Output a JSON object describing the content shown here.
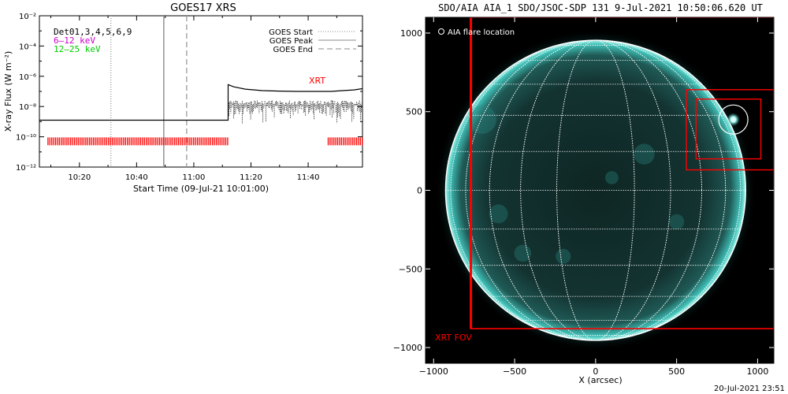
{
  "colors": {
    "flux_line": "#000000",
    "flag_marks": "#ff0000",
    "label_purple": "#cc00cc",
    "label_green": "#00cc00",
    "xrt_red": "#ff0000",
    "sun_teal": "#2bb5ad",
    "grid_white": "#ffffff",
    "ref_line_gray": "#999999"
  },
  "footer": {
    "timestamp": "20-Jul-2021 23:51"
  },
  "chart_data": [
    {
      "type": "line",
      "title": "GOES17 XRS",
      "xlabel": "Start Time (09-Jul-21 10:01:00)",
      "ylabel": "X-ray Flux (W m⁻²)",
      "x_unit": "minutes after 10:00",
      "xlim": [
        6,
        119
      ],
      "ylim_log10": [
        -12,
        -2
      ],
      "y_scale": "log",
      "xticks": [
        20,
        40,
        60,
        80,
        100
      ],
      "xtick_labels": [
        "10:20",
        "10:40",
        "11:00",
        "11:20",
        "11:40"
      ],
      "yticks": [
        {
          "exp": -2,
          "label": "10⁻²"
        },
        {
          "exp": -4,
          "label": "10⁻⁴"
        },
        {
          "exp": -6,
          "label": "10⁻⁶"
        },
        {
          "exp": -8,
          "label": "10⁻⁸"
        },
        {
          "exp": -10,
          "label": "10⁻¹⁰"
        },
        {
          "exp": -12,
          "label": "10⁻¹²"
        }
      ],
      "annotations": {
        "detectors": "Det01,3,4,5,6,9",
        "band_low": "6–12 keV",
        "band_high": "12–25 keV",
        "xrt": "XRT"
      },
      "legend": {
        "position": "top-right",
        "entries": [
          {
            "label": "GOES Start",
            "style": "dotted"
          },
          {
            "label": "GOES Peak",
            "style": "solid"
          },
          {
            "label": "GOES End",
            "style": "dashed"
          }
        ]
      },
      "reference_lines": [
        {
          "name": "GOES Start",
          "x": 31,
          "style": "dotted"
        },
        {
          "name": "GOES Peak",
          "x": 49.5,
          "style": "solid"
        },
        {
          "name": "GOES End",
          "x": 57.5,
          "style": "dashed"
        }
      ],
      "series": [
        {
          "points": [
            [
              6,
              -8.9
            ],
            [
              60,
              -8.9
            ],
            [
              60,
              -8.9
            ],
            [
              72,
              -8.9
            ],
            [
              72,
              -6.55
            ],
            [
              74,
              -6.7
            ],
            [
              78,
              -6.85
            ],
            [
              84,
              -6.95
            ],
            [
              90,
              -6.98
            ],
            [
              96,
              -7.0
            ],
            [
              102,
              -7.0
            ],
            [
              108,
              -7.0
            ],
            [
              112,
              -6.95
            ],
            [
              116,
              -6.9
            ],
            [
              119,
              -6.82
            ]
          ]
        }
      ],
      "noisy_band": {
        "x_start": 72,
        "x_end": 119,
        "upper_log10": -7.6,
        "lower_log10": -8.6
      },
      "flag_segments": [
        [
          9,
          72
        ],
        [
          107,
          119
        ]
      ],
      "flag_level_log10": -10.3
    },
    {
      "type": "image",
      "title": "SDO/AIA AIA_1 SDO/JSOC-SDP 131  9-Jul-2021 10:50:06.620 UT",
      "xlabel": "X (arcsec)",
      "xlim": [
        -1050,
        1100
      ],
      "ylim": [
        -1100,
        1100
      ],
      "xticks": [
        -1000,
        -500,
        0,
        500,
        1000
      ],
      "xtick_labels": [
        "−1000",
        "−500",
        "0",
        "500",
        "1000"
      ],
      "yticks": [
        1000,
        500,
        0,
        -500,
        -1000
      ],
      "ytick_labels": [
        "1000",
        "500",
        "0",
        "−500",
        "−1000"
      ],
      "solar_radius": 940,
      "grid_spacing_deg": 15,
      "legend_label": "AIA flare location",
      "flare_location": [
        850,
        450
      ],
      "flare_circle_radius": 90,
      "boxes": [
        {
          "name": "outer",
          "x": [
            560,
            1100
          ],
          "y": [
            130,
            640
          ]
        },
        {
          "name": "inner",
          "x": [
            620,
            1020
          ],
          "y": [
            200,
            580
          ]
        },
        {
          "name": "XRT FOV",
          "x": [
            -770,
            1100
          ],
          "y": [
            -880,
            1100
          ]
        }
      ],
      "xrt_fov_label": "XRT FOV"
    }
  ]
}
